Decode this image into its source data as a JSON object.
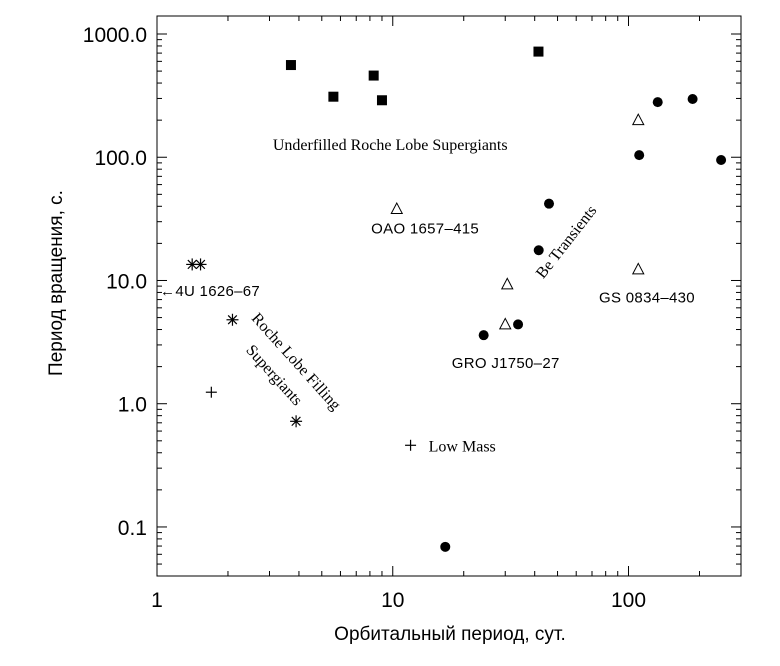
{
  "chart_data": {
    "type": "scatter",
    "xlabel": "Орбитальный период, сут.",
    "ylabel": "Период вращения, с.",
    "x_scale": "log",
    "y_scale": "log",
    "xlim": [
      1,
      300
    ],
    "ylim": [
      0.04,
      1400
    ],
    "x_ticks": [
      {
        "value": 1,
        "label": "1"
      },
      {
        "value": 10,
        "label": "10"
      },
      {
        "value": 100,
        "label": "100"
      }
    ],
    "y_ticks": [
      {
        "value": 0.1,
        "label": "0.1"
      },
      {
        "value": 1,
        "label": "1.0"
      },
      {
        "value": 10,
        "label": "10.0"
      },
      {
        "value": 100,
        "label": "100.0"
      },
      {
        "value": 1000,
        "label": "1000.0"
      }
    ],
    "grid": false,
    "series": [
      {
        "marker": "filled-square",
        "points": [
          {
            "x": 3.7,
            "y": 560
          },
          {
            "x": 5.6,
            "y": 310
          },
          {
            "x": 8.3,
            "y": 460
          },
          {
            "x": 9.0,
            "y": 290
          },
          {
            "x": 41.5,
            "y": 720
          }
        ]
      },
      {
        "marker": "filled-circle",
        "points": [
          {
            "x": 16.7,
            "y": 0.069
          },
          {
            "x": 24.3,
            "y": 3.6
          },
          {
            "x": 34.0,
            "y": 4.4
          },
          {
            "x": 41.6,
            "y": 17.6
          },
          {
            "x": 46.0,
            "y": 42
          },
          {
            "x": 111,
            "y": 104
          },
          {
            "x": 133,
            "y": 280
          },
          {
            "x": 187,
            "y": 297
          },
          {
            "x": 247,
            "y": 95
          }
        ]
      },
      {
        "marker": "open-triangle",
        "points": [
          {
            "x": 10.4,
            "y": 38
          },
          {
            "x": 30.0,
            "y": 4.4
          },
          {
            "x": 30.6,
            "y": 9.3
          },
          {
            "x": 110,
            "y": 200
          },
          {
            "x": 110,
            "y": 12.3
          }
        ]
      },
      {
        "marker": "asterisk",
        "points": [
          {
            "x": 1.41,
            "y": 13.5
          },
          {
            "x": 1.53,
            "y": 13.5
          },
          {
            "x": 2.09,
            "y": 4.8
          },
          {
            "x": 3.89,
            "y": 0.72
          }
        ]
      },
      {
        "marker": "plus",
        "points": [
          {
            "x": 1.7,
            "y": 1.24
          },
          {
            "x": 11.9,
            "y": 0.46
          }
        ]
      }
    ],
    "annotations": [
      {
        "text": "Underfilled Roche Lobe Supergiants",
        "x": 3.1,
        "y": 115,
        "style": "serif",
        "rotate": 0
      },
      {
        "text": "OAO 1657–415",
        "x": 8.1,
        "y": 24,
        "style": "sans",
        "rotate": 0
      },
      {
        "text": "Be Transients",
        "x": 43.5,
        "y": 10.2,
        "style": "serif",
        "rotate": -52
      },
      {
        "text": "GS 0834–430",
        "x": 75,
        "y": 6.6,
        "style": "sans",
        "rotate": 0
      },
      {
        "text": "←4U 1626–67",
        "x": 1.03,
        "y": 7.5,
        "style": "sans",
        "rotate": 0
      },
      {
        "text": "Roche Lobe Filling",
        "x": 2.5,
        "y": 4.9,
        "style": "serif",
        "rotate": 48
      },
      {
        "text": "Supergiants",
        "x": 2.37,
        "y": 2.7,
        "style": "serif",
        "rotate": 48
      },
      {
        "text": "GRO J1750–27",
        "x": 17.8,
        "y": 1.95,
        "style": "sans",
        "rotate": 0
      },
      {
        "text": "Low Mass",
        "x": 14.2,
        "y": 0.41,
        "style": "serif",
        "rotate": 0
      }
    ]
  }
}
